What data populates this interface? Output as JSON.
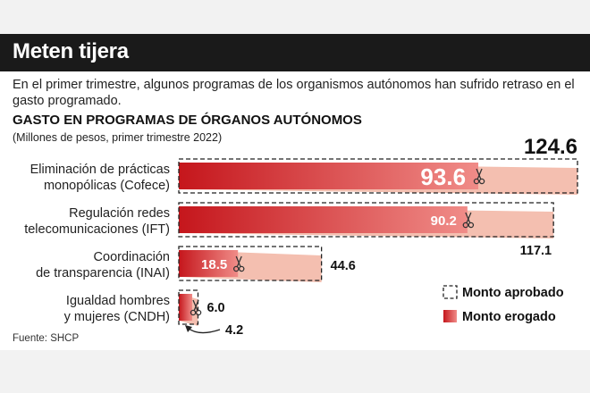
{
  "header": {
    "title": "Meten tijera",
    "subtitle": "En el primer trimestre, algunos programas de los organismos autónomos han sufrido retraso en el gasto programado.",
    "source": "Fuente: SHCP"
  },
  "colors": {
    "approved_fill": "#f4bfb0",
    "spent_start": "#c5161c",
    "spent_end": "#f08c88",
    "title_bar": "#1a1a1a"
  },
  "chart_data": {
    "type": "bar",
    "orientation": "horizontal",
    "title": "GASTO EN PROGRAMAS DE ÓRGANOS AUTÓNOMOS",
    "units": "(Millones de pesos, primer trimestre 2022)",
    "categories": [
      [
        "Eliminación de prácticas",
        "monopólicas (Cofece)"
      ],
      [
        "Regulación redes",
        "telecomunicaciones (IFT)"
      ],
      [
        "Coordinación",
        "de transparencia (INAI)"
      ],
      [
        "Igualdad hombres",
        "y mujeres (CNDH)"
      ]
    ],
    "series": [
      {
        "name": "Monto aprobado",
        "values": [
          124.6,
          117.1,
          44.6,
          6.0
        ]
      },
      {
        "name": "Monto erogado",
        "values": [
          93.6,
          90.2,
          18.5,
          4.2
        ]
      }
    ],
    "approved_labels": [
      "124.6",
      "117.1",
      "44.6",
      "6.0"
    ],
    "spent_labels": [
      "93.6",
      "90.2",
      "18.5",
      "4.2"
    ],
    "xlim": [
      0,
      124.6
    ],
    "legend": {
      "position": "bottom-right",
      "entries": [
        "Monto aprobado",
        "Monto erogado"
      ]
    },
    "grid": false
  }
}
